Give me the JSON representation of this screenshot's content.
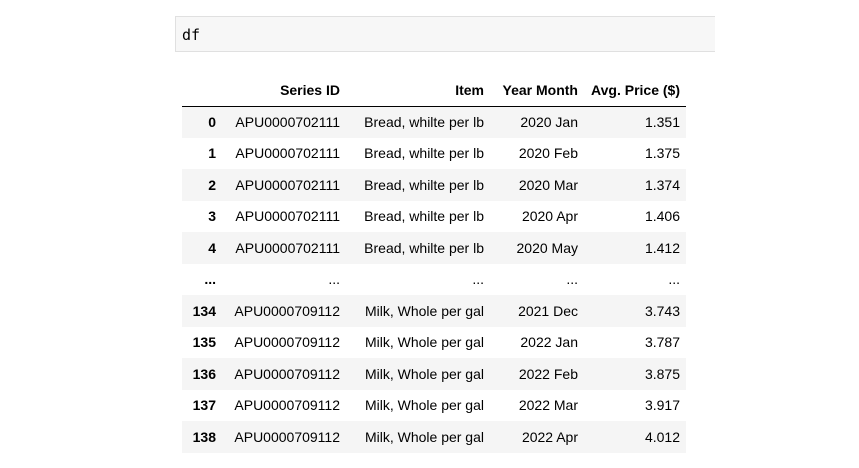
{
  "code_cell": {
    "source": "df"
  },
  "dataframe": {
    "columns": [
      "",
      "Series ID",
      "Item",
      "Year Month",
      "Avg. Price ($)"
    ],
    "rows": [
      {
        "index": "0",
        "cells": [
          "APU0000702111",
          "Bread, whilte per lb",
          "2020 Jan",
          "1.351"
        ]
      },
      {
        "index": "1",
        "cells": [
          "APU0000702111",
          "Bread, whilte per lb",
          "2020 Feb",
          "1.375"
        ]
      },
      {
        "index": "2",
        "cells": [
          "APU0000702111",
          "Bread, whilte per lb",
          "2020 Mar",
          "1.374"
        ]
      },
      {
        "index": "3",
        "cells": [
          "APU0000702111",
          "Bread, whilte per lb",
          "2020 Apr",
          "1.406"
        ]
      },
      {
        "index": "4",
        "cells": [
          "APU0000702111",
          "Bread, whilte per lb",
          "2020 May",
          "1.412"
        ]
      },
      {
        "index": "...",
        "cells": [
          "...",
          "...",
          "...",
          "..."
        ]
      },
      {
        "index": "134",
        "cells": [
          "APU0000709112",
          "Milk, Whole per gal",
          "2021 Dec",
          "3.743"
        ]
      },
      {
        "index": "135",
        "cells": [
          "APU0000709112",
          "Milk, Whole per gal",
          "2022 Jan",
          "3.787"
        ]
      },
      {
        "index": "136",
        "cells": [
          "APU0000709112",
          "Milk, Whole per gal",
          "2022 Feb",
          "3.875"
        ]
      },
      {
        "index": "137",
        "cells": [
          "APU0000709112",
          "Milk, Whole per gal",
          "2022 Mar",
          "3.917"
        ]
      },
      {
        "index": "138",
        "cells": [
          "APU0000709112",
          "Milk, Whole per gal",
          "2022 Apr",
          "4.012"
        ]
      }
    ]
  }
}
